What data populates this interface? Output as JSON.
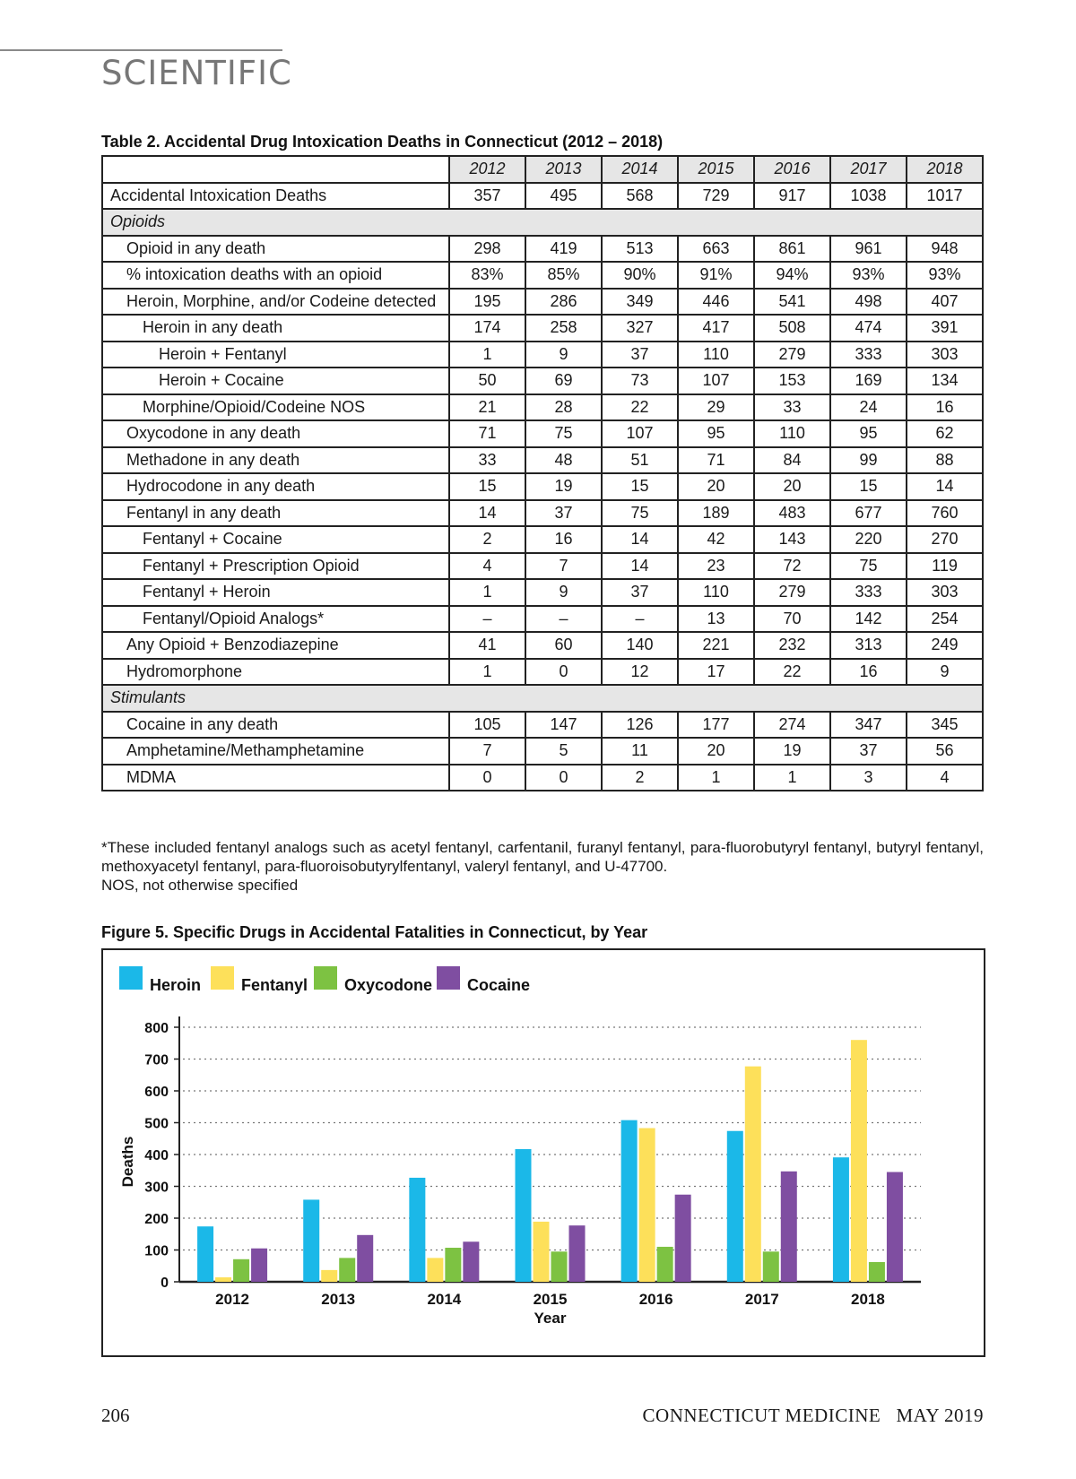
{
  "header": {
    "section": "SCIENTIFIC"
  },
  "table": {
    "caption": "Table 2. Accidental Drug Intoxication Deaths in Connecticut (2012 – 2018)",
    "years": [
      "2012",
      "2013",
      "2014",
      "2015",
      "2016",
      "2017",
      "2018"
    ],
    "rows": [
      {
        "label": "Accidental Intoxication Deaths",
        "level": 0,
        "values": [
          "357",
          "495",
          "568",
          "729",
          "917",
          "1038",
          "1017"
        ]
      },
      {
        "label": "Opioids",
        "section": true
      },
      {
        "label": "Opioid in any death",
        "level": 1,
        "values": [
          "298",
          "419",
          "513",
          "663",
          "861",
          "961",
          "948"
        ]
      },
      {
        "label": "% intoxication deaths with an opioid",
        "level": 1,
        "values": [
          "83%",
          "85%",
          "90%",
          "91%",
          "94%",
          "93%",
          "93%"
        ]
      },
      {
        "label": "Heroin, Morphine, and/or Codeine detected",
        "level": 1,
        "values": [
          "195",
          "286",
          "349",
          "446",
          "541",
          "498",
          "407"
        ]
      },
      {
        "label": "Heroin in any death",
        "level": 2,
        "values": [
          "174",
          "258",
          "327",
          "417",
          "508",
          "474",
          "391"
        ]
      },
      {
        "label": "Heroin + Fentanyl",
        "level": 3,
        "values": [
          "1",
          "9",
          "37",
          "110",
          "279",
          "333",
          "303"
        ]
      },
      {
        "label": "Heroin + Cocaine",
        "level": 3,
        "values": [
          "50",
          "69",
          "73",
          "107",
          "153",
          "169",
          "134"
        ]
      },
      {
        "label": "Morphine/Opioid/Codeine NOS",
        "level": 2,
        "values": [
          "21",
          "28",
          "22",
          "29",
          "33",
          "24",
          "16"
        ]
      },
      {
        "label": "Oxycodone in any death",
        "level": 1,
        "values": [
          "71",
          "75",
          "107",
          "95",
          "110",
          "95",
          "62"
        ]
      },
      {
        "label": "Methadone in any death",
        "level": 1,
        "values": [
          "33",
          "48",
          "51",
          "71",
          "84",
          "99",
          "88"
        ]
      },
      {
        "label": "Hydrocodone in any death",
        "level": 1,
        "values": [
          "15",
          "19",
          "15",
          "20",
          "20",
          "15",
          "14"
        ]
      },
      {
        "label": "Fentanyl in any death",
        "level": 1,
        "values": [
          "14",
          "37",
          "75",
          "189",
          "483",
          "677",
          "760"
        ]
      },
      {
        "label": "Fentanyl + Cocaine",
        "level": 2,
        "values": [
          "2",
          "16",
          "14",
          "42",
          "143",
          "220",
          "270"
        ]
      },
      {
        "label": "Fentanyl + Prescription Opioid",
        "level": 2,
        "values": [
          "4",
          "7",
          "14",
          "23",
          "72",
          "75",
          "119"
        ]
      },
      {
        "label": "Fentanyl + Heroin",
        "level": 2,
        "values": [
          "1",
          "9",
          "37",
          "110",
          "279",
          "333",
          "303"
        ]
      },
      {
        "label": "Fentanyl/Opioid Analogs*",
        "level": 2,
        "values": [
          "–",
          "–",
          "–",
          "13",
          "70",
          "142",
          "254"
        ]
      },
      {
        "label": "Any Opioid + Benzodiazepine",
        "level": 1,
        "values": [
          "41",
          "60",
          "140",
          "221",
          "232",
          "313",
          "249"
        ]
      },
      {
        "label": "Hydromorphone",
        "level": 1,
        "values": [
          "1",
          "0",
          "12",
          "17",
          "22",
          "16",
          "9"
        ]
      },
      {
        "label": "Stimulants",
        "section": true
      },
      {
        "label": "Cocaine in any death",
        "level": 1,
        "values": [
          "105",
          "147",
          "126",
          "177",
          "274",
          "347",
          "345"
        ]
      },
      {
        "label": "Amphetamine/Methamphetamine",
        "level": 1,
        "values": [
          "7",
          "5",
          "11",
          "20",
          "19",
          "37",
          "56"
        ]
      },
      {
        "label": "MDMA",
        "level": 1,
        "values": [
          "0",
          "0",
          "2",
          "1",
          "1",
          "3",
          "4"
        ]
      }
    ],
    "footnote1": "*These included fentanyl analogs such as acetyl fentanyl, carfentanil, furanyl fentanyl, para-fluorobutyryl fentanyl, butyryl fentanyl, methoxyacetyl fentanyl, para-fluoroisobutyrylfentanyl, valeryl fentanyl, and U-47700.",
    "footnote2": "NOS, not otherwise specified"
  },
  "figure": {
    "caption": "Figure 5. Specific Drugs in Accidental Fatalities in Connecticut, by Year"
  },
  "chart_data": {
    "type": "bar",
    "categories": [
      "2012",
      "2013",
      "2014",
      "2015",
      "2016",
      "2017",
      "2018"
    ],
    "series": [
      {
        "name": "Heroin",
        "color": "#1bb8e8",
        "values": [
          174,
          258,
          327,
          417,
          508,
          474,
          391
        ]
      },
      {
        "name": "Fentanyl",
        "color": "#fde05a",
        "values": [
          14,
          37,
          75,
          189,
          483,
          677,
          760
        ]
      },
      {
        "name": "Oxycodone",
        "color": "#7dc242",
        "values": [
          71,
          75,
          107,
          95,
          110,
          95,
          62
        ]
      },
      {
        "name": "Cocaine",
        "color": "#7f4ea1",
        "values": [
          105,
          147,
          126,
          177,
          274,
          347,
          345
        ]
      }
    ],
    "xlabel": "Year",
    "ylabel": "Deaths",
    "ylim": [
      0,
      800
    ],
    "yticks": [
      0,
      100,
      200,
      300,
      400,
      500,
      600,
      700,
      800
    ],
    "grid": true,
    "legend": "top-left"
  },
  "footer": {
    "page": "206",
    "journal": "CONNECTICUT MEDICINE   MAY 2019"
  }
}
